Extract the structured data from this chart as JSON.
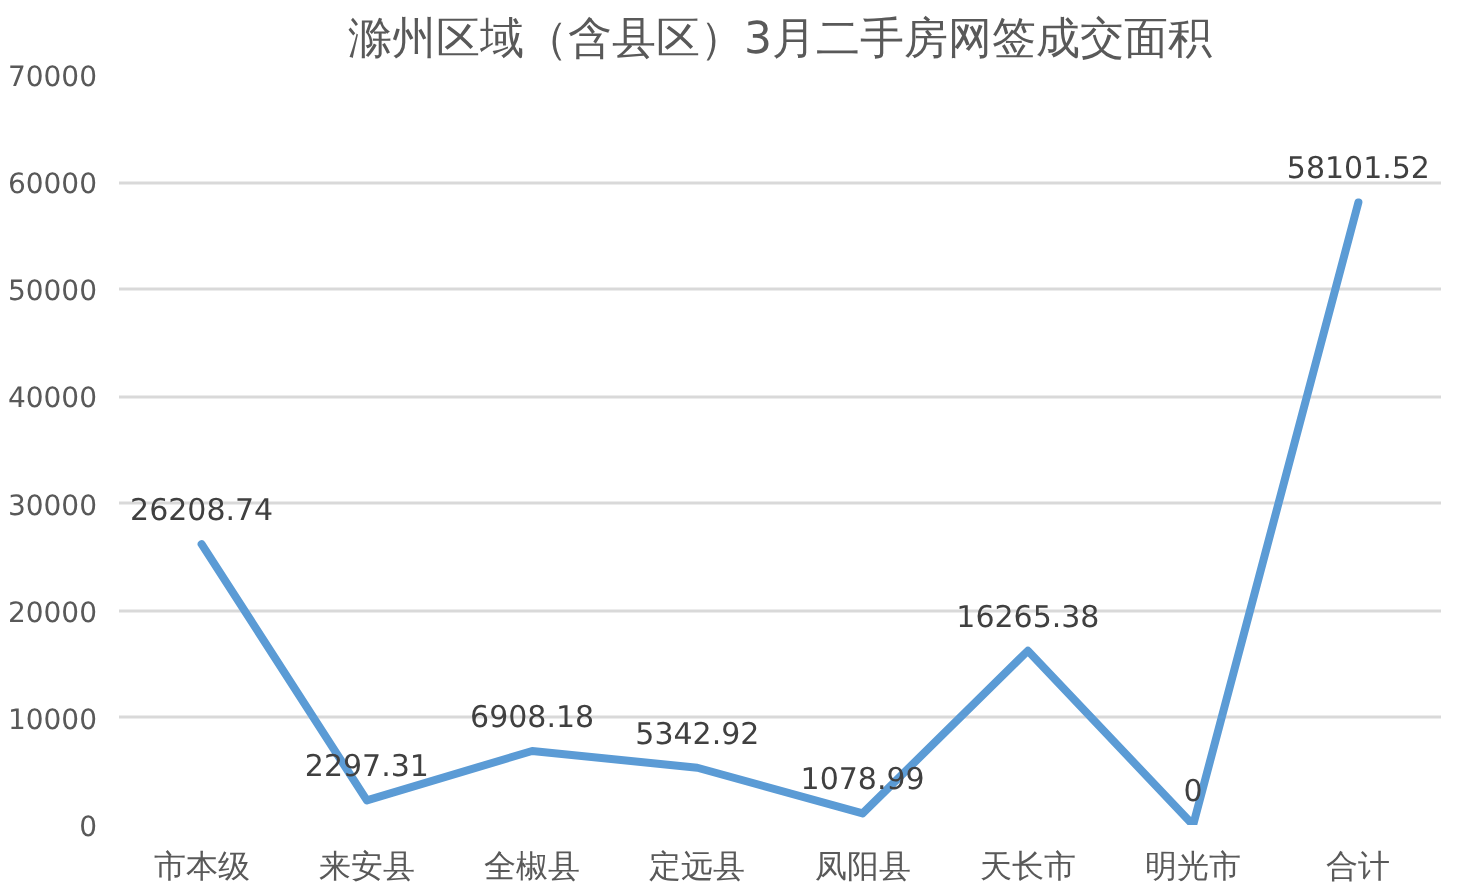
{
  "chart_data": {
    "type": "line",
    "title": "滁州区域（含县区）3月二手房网签成交面积",
    "categories": [
      "市本级",
      "来安县",
      "全椒县",
      "定远县",
      "凤阳县",
      "天长市",
      "明光市",
      "合计"
    ],
    "series": [
      {
        "color": "#5b9bd5",
        "values": [
          26208.74,
          2297.31,
          6908.18,
          5342.92,
          1078.99,
          16265.38,
          0,
          58101.52
        ]
      }
    ],
    "ylim": [
      0,
      70000
    ],
    "yticks": [
      0,
      10000,
      20000,
      30000,
      40000,
      50000,
      60000,
      70000
    ],
    "grid": "y",
    "data_labels": true,
    "line_style": "solid"
  }
}
